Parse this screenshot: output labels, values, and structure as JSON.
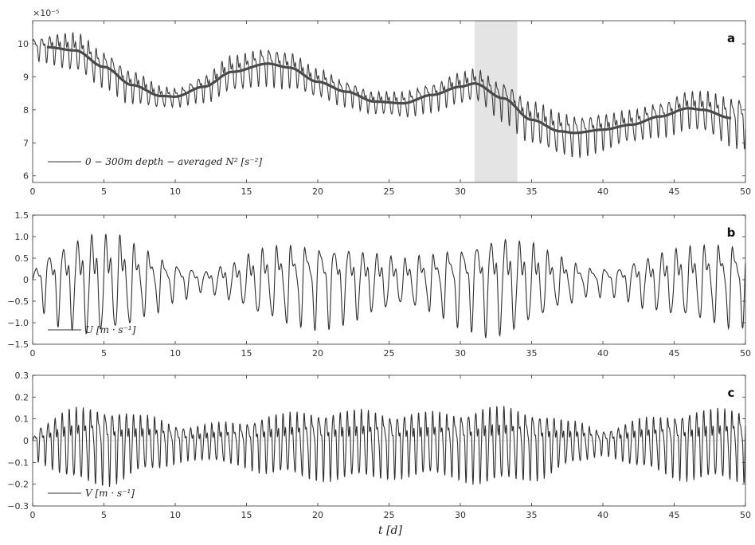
{
  "figure": {
    "xlabel": "t [d]"
  },
  "chart_data": [
    {
      "type": "line",
      "panel_label": "a",
      "scale_label": "×10⁻⁵",
      "legend": "0 − 300m depth − averaged N² [s⁻²]",
      "xlim": [
        0,
        50
      ],
      "ylim": [
        5.8,
        10.7
      ],
      "xticks": [
        0,
        5,
        10,
        15,
        20,
        25,
        30,
        35,
        40,
        45,
        50
      ],
      "yticks": [
        6,
        7,
        8,
        9,
        10
      ],
      "shaded_region": [
        31,
        34
      ],
      "grid": false,
      "series": [
        {
          "role": "raw",
          "color": "#3c3c3c",
          "carrier_period_d": 0.55,
          "amplitude_envelope": {
            "x": [
              0,
              3,
              6,
              10,
              14,
              17,
              20,
              24,
              28,
              31,
              34,
              38,
              42,
              46,
              50
            ],
            "y": [
              0.35,
              0.6,
              0.55,
              0.3,
              0.55,
              0.6,
              0.45,
              0.35,
              0.45,
              0.5,
              0.65,
              0.65,
              0.5,
              0.6,
              0.8
            ]
          }
        },
        {
          "role": "smoothed",
          "color": "#4a4a4a",
          "x": [
            1,
            3,
            5,
            7,
            9,
            10,
            12,
            14,
            16.5,
            18,
            20,
            22,
            24,
            26,
            28,
            30,
            31,
            33,
            35,
            37,
            38,
            40,
            42,
            44,
            46,
            47,
            49
          ],
          "y": [
            9.9,
            9.8,
            9.3,
            8.75,
            8.42,
            8.4,
            8.7,
            9.15,
            9.4,
            9.28,
            8.85,
            8.55,
            8.25,
            8.2,
            8.45,
            8.7,
            8.8,
            8.35,
            7.7,
            7.35,
            7.3,
            7.4,
            7.55,
            7.8,
            8.05,
            8.0,
            7.75
          ]
        }
      ]
    },
    {
      "type": "line",
      "panel_label": "b",
      "legend": "U [m · s⁻¹]",
      "xlim": [
        0,
        50
      ],
      "ylim": [
        -1.5,
        1.5
      ],
      "xticks": [
        0,
        5,
        10,
        15,
        20,
        25,
        30,
        35,
        40,
        45,
        50
      ],
      "yticks": [
        -1.5,
        -1.0,
        -0.5,
        0,
        0.5,
        1.0,
        1.5
      ],
      "ytick_labels": [
        "−1.5",
        "−1.0",
        "−0.5",
        "0",
        "0.5",
        "1.0",
        "1.5"
      ],
      "grid": false,
      "series": [
        {
          "color": "#2f2f2f",
          "carrier_period_d": 1.0,
          "amplitude_envelope": {
            "x": [
              0,
              2,
              4,
              6,
              8,
              10,
              12,
              14,
              16,
              18,
              20,
              22,
              24,
              26,
              28,
              30,
              32,
              33,
              35,
              37,
              39,
              41,
              43,
              45,
              47,
              49,
              50
            ],
            "y": [
              0.5,
              0.95,
              1.2,
              1.15,
              0.8,
              0.45,
              0.25,
              0.45,
              0.8,
              0.95,
              1.0,
              0.9,
              0.7,
              0.55,
              0.7,
              0.95,
              1.15,
              1.15,
              0.95,
              0.6,
              0.35,
              0.35,
              0.6,
              0.8,
              0.9,
              1.0,
              0.95
            ]
          }
        }
      ]
    },
    {
      "type": "line",
      "panel_label": "c",
      "legend": "V [m · s⁻¹]",
      "xlim": [
        0,
        50
      ],
      "ylim": [
        -0.3,
        0.3
      ],
      "xticks": [
        0,
        5,
        10,
        15,
        20,
        25,
        30,
        35,
        40,
        45,
        50
      ],
      "yticks": [
        -0.3,
        -0.2,
        -0.1,
        0,
        0.1,
        0.2,
        0.3
      ],
      "ytick_labels": [
        "−0.3",
        "−0.2",
        "−0.1",
        "0",
        "0.1",
        "0.2",
        "0.3"
      ],
      "zero_line": true,
      "grid": false,
      "series": [
        {
          "color": "#2f2f2f",
          "carrier_period_d": 0.5,
          "amplitude_envelope": {
            "x": [
              0,
              3,
              5,
              8,
              11,
              14,
              17,
              20,
              23,
              26,
              29,
              32,
              35,
              38,
              40,
              43,
              46,
              50
            ],
            "y": [
              0.08,
              0.17,
              0.18,
              0.13,
              0.08,
              0.1,
              0.14,
              0.16,
              0.16,
              0.15,
              0.15,
              0.18,
              0.16,
              0.1,
              0.06,
              0.12,
              0.16,
              0.17
            ]
          }
        }
      ]
    }
  ]
}
